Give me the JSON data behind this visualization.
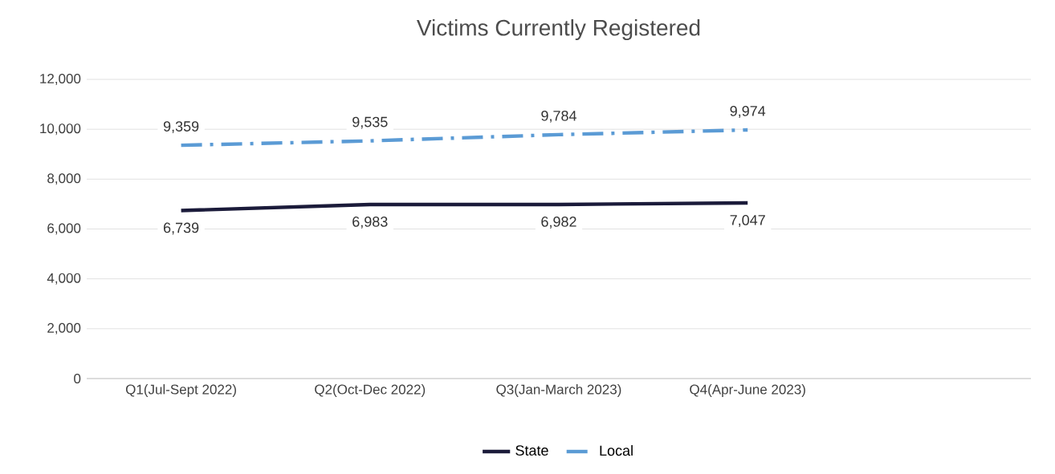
{
  "chart_data": {
    "type": "line",
    "title": "Victims Currently Registered",
    "categories": [
      "Q1(Jul-Sept 2022)",
      "Q2(Oct-Dec 2022)",
      "Q3(Jan-March 2023)",
      "Q4(Apr-June 2023)",
      null
    ],
    "series": [
      {
        "name": "State",
        "color": "#1b1b3a",
        "line_style": "solid",
        "values": [
          6739,
          6983,
          6982,
          7047,
          null
        ],
        "value_labels": [
          "6,739",
          "6,983",
          "6,982",
          "7,047",
          null
        ]
      },
      {
        "name": "Local",
        "color": "#5b9bd5",
        "line_style": "dashdot",
        "values": [
          9359,
          9535,
          9784,
          9974,
          null
        ],
        "value_labels": [
          "9,359",
          "9,535",
          "9,784",
          "9,974",
          null
        ]
      }
    ],
    "ylim": [
      0,
      12000
    ],
    "yticks": [
      {
        "value": 0,
        "label": "0"
      },
      {
        "value": 2000,
        "label": "2,000"
      },
      {
        "value": 4000,
        "label": "4,000"
      },
      {
        "value": 6000,
        "label": "6,000"
      },
      {
        "value": 8000,
        "label": "8,000"
      },
      {
        "value": 10000,
        "label": "10,000"
      },
      {
        "value": 12000,
        "label": "12,000"
      }
    ],
    "grid": "y",
    "legend": "bottom"
  }
}
